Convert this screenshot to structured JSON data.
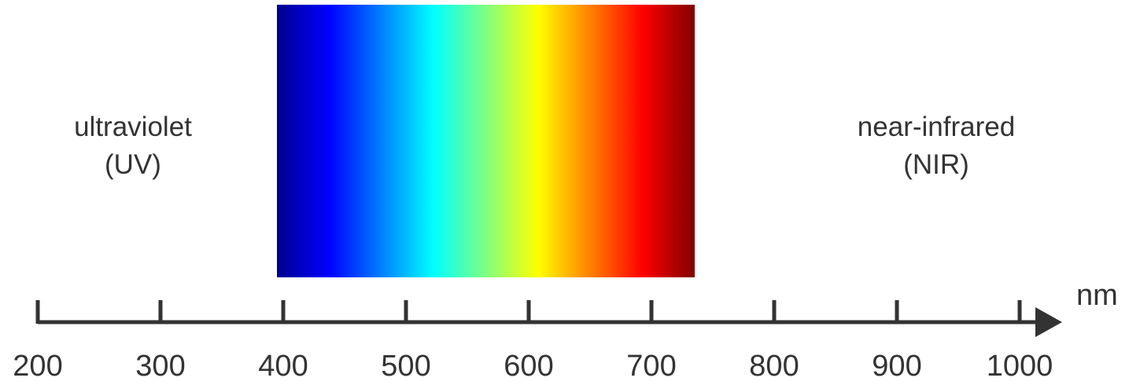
{
  "regions": {
    "uv": {
      "line1": "ultraviolet",
      "line2": "(UV)"
    },
    "nir": {
      "line1": "near-infrared",
      "line2": "(NIR)"
    }
  },
  "axis": {
    "unit": "nm",
    "min": 200,
    "max": 1000,
    "ticks": [
      200,
      300,
      400,
      500,
      600,
      700,
      800,
      900,
      1000
    ],
    "tick_labels": [
      "200",
      "300",
      "400",
      "500",
      "600",
      "700",
      "800",
      "900",
      "1000"
    ]
  },
  "visible_band": {
    "start": 400,
    "end": 750,
    "colors": [
      "#00008f",
      "#0000ff",
      "#0080ff",
      "#00ffff",
      "#80ff80",
      "#ffff00",
      "#ff8000",
      "#ff0000",
      "#800000"
    ]
  },
  "colors": {
    "axis": "#333333",
    "text": "#333333"
  }
}
